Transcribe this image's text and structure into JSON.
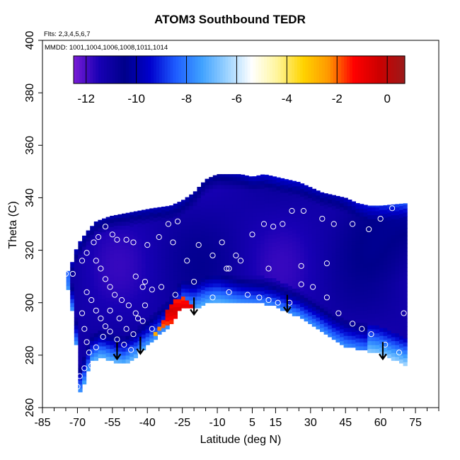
{
  "chart_data": {
    "type": "heatmap",
    "title": "ATOM3 Southbound TEDR",
    "note_flights": "Flts: 2,3,4,5,6,7",
    "note_dates": "MMDD: 1001,1004,1006,1008,1011,1014",
    "xlabel": "Latitude (deg N)",
    "ylabel": "Theta (C)",
    "xlim": [
      -85,
      85
    ],
    "ylim": [
      260,
      400
    ],
    "xticks": [
      "-85",
      "-70",
      "-55",
      "-40",
      "-25",
      "-10",
      "5",
      "15",
      "30",
      "45",
      "60",
      "75"
    ],
    "yticks": [
      "260",
      "280",
      "300",
      "320",
      "340",
      "360",
      "380",
      "400"
    ],
    "colorbar": {
      "ticks": [
        "-12",
        "-10",
        "-8",
        "-6",
        "-4",
        "-2",
        "0"
      ],
      "range": [
        -12.5,
        0.7
      ],
      "colors": [
        "#7a1bd6",
        "#1800b4",
        "#00008b",
        "#0000cd",
        "#1e5cff",
        "#3ea0ff",
        "#9ad2ff",
        "#ffffff",
        "#fff59a",
        "#ffd400",
        "#ff9800",
        "#ff0000",
        "#cc0000",
        "#9b1a1a"
      ]
    },
    "coverage_upper": [
      [
        -75,
        310
      ],
      [
        -72,
        316
      ],
      [
        -70,
        322
      ],
      [
        -66,
        327
      ],
      [
        -62,
        331
      ],
      [
        -56,
        333
      ],
      [
        -50,
        334
      ],
      [
        -44,
        335
      ],
      [
        -38,
        336
      ],
      [
        -30,
        337
      ],
      [
        -25,
        339
      ],
      [
        -20,
        342
      ],
      [
        -15,
        347
      ],
      [
        -10,
        349
      ],
      [
        -5,
        349
      ],
      [
        0,
        349
      ],
      [
        5,
        348
      ],
      [
        10,
        349
      ],
      [
        15,
        348
      ],
      [
        20,
        347
      ],
      [
        25,
        346
      ],
      [
        30,
        344
      ],
      [
        35,
        342
      ],
      [
        40,
        341
      ],
      [
        45,
        340
      ],
      [
        50,
        338
      ],
      [
        55,
        337
      ],
      [
        60,
        337
      ],
      [
        66,
        337.5
      ],
      [
        72,
        338
      ]
    ],
    "coverage_lower": [
      [
        -75,
        310
      ],
      [
        -72,
        296
      ],
      [
        -70,
        280
      ],
      [
        -69,
        266
      ],
      [
        -67,
        270
      ],
      [
        -64,
        278
      ],
      [
        -60,
        280
      ],
      [
        -55,
        278
      ],
      [
        -50,
        277
      ],
      [
        -45,
        280
      ],
      [
        -40,
        284
      ],
      [
        -35,
        288
      ],
      [
        -30,
        292
      ],
      [
        -25,
        299
      ],
      [
        -20,
        298
      ],
      [
        -15,
        300
      ],
      [
        -10,
        301
      ],
      [
        -5,
        300.5
      ],
      [
        0,
        300
      ],
      [
        5,
        300
      ],
      [
        10,
        300
      ],
      [
        15,
        299
      ],
      [
        20,
        297
      ],
      [
        25,
        295
      ],
      [
        30,
        292
      ],
      [
        35,
        289
      ],
      [
        40,
        286
      ],
      [
        45,
        284
      ],
      [
        50,
        283
      ],
      [
        55,
        282
      ],
      [
        60,
        281
      ],
      [
        65,
        279
      ],
      [
        72,
        276
      ]
    ],
    "high_region": [
      [
        -25,
        297
      ],
      [
        -22,
        296
      ],
      [
        -18,
        295
      ],
      [
        -22,
        300
      ],
      [
        -25,
        302
      ],
      [
        -30,
        300
      ],
      [
        -34,
        292
      ],
      [
        -37,
        288
      ],
      [
        -33,
        290
      ],
      [
        -28,
        294
      ]
    ],
    "obs_points": [
      [
        -75,
        311
      ],
      [
        -72,
        311
      ],
      [
        -68,
        316
      ],
      [
        -66,
        319
      ],
      [
        -63,
        323
      ],
      [
        -61,
        325
      ],
      [
        -58,
        329
      ],
      [
        -55,
        326
      ],
      [
        -53,
        324
      ],
      [
        -49,
        324
      ],
      [
        -46,
        323
      ],
      [
        -40,
        322
      ],
      [
        -35,
        325
      ],
      [
        -31,
        330
      ],
      [
        -27,
        331
      ],
      [
        -29,
        323
      ],
      [
        -23,
        316
      ],
      [
        -20,
        308
      ],
      [
        -18,
        322
      ],
      [
        -12,
        318
      ],
      [
        -8,
        323
      ],
      [
        -5,
        313
      ],
      [
        -2,
        318
      ],
      [
        0,
        316
      ],
      [
        5,
        326
      ],
      [
        10,
        330
      ],
      [
        14,
        329
      ],
      [
        18,
        330
      ],
      [
        22,
        335
      ],
      [
        27,
        335
      ],
      [
        35,
        332
      ],
      [
        40,
        330
      ],
      [
        48,
        330
      ],
      [
        55,
        328
      ],
      [
        60,
        332
      ],
      [
        65,
        336
      ],
      [
        -62,
        316
      ],
      [
        -60,
        313
      ],
      [
        -58,
        309
      ],
      [
        -56,
        306
      ],
      [
        -54,
        303
      ],
      [
        -51,
        301
      ],
      [
        -48,
        299
      ],
      [
        -45,
        296
      ],
      [
        -42,
        293
      ],
      [
        -38,
        290
      ],
      [
        -66,
        304
      ],
      [
        -64,
        301
      ],
      [
        -62,
        297
      ],
      [
        -60,
        294
      ],
      [
        -58,
        291
      ],
      [
        -56,
        289
      ],
      [
        -53,
        286
      ],
      [
        -50,
        284
      ],
      [
        -47,
        282
      ],
      [
        -43,
        281
      ],
      [
        -68,
        296
      ],
      [
        -67,
        290
      ],
      [
        -66,
        285
      ],
      [
        -65,
        281
      ],
      [
        -64,
        276
      ],
      [
        -62,
        283
      ],
      [
        -59,
        287
      ],
      [
        -56,
        297
      ],
      [
        -52,
        294
      ],
      [
        -49,
        290
      ],
      [
        -46,
        288
      ],
      [
        -44,
        294
      ],
      [
        -41,
        299
      ],
      [
        -38,
        305
      ],
      [
        -34,
        306
      ],
      [
        -28,
        303
      ],
      [
        -12,
        302
      ],
      [
        -5,
        304
      ],
      [
        3,
        303
      ],
      [
        8,
        302
      ],
      [
        12,
        301
      ],
      [
        16,
        300
      ],
      [
        21,
        300
      ],
      [
        26,
        307
      ],
      [
        31,
        306
      ],
      [
        37,
        302
      ],
      [
        42,
        296
      ],
      [
        48,
        292
      ],
      [
        52,
        290
      ],
      [
        56,
        288
      ],
      [
        62,
        284
      ],
      [
        68,
        281
      ],
      [
        70,
        296
      ],
      [
        -70,
        268
      ],
      [
        -69,
        272
      ],
      [
        -67,
        275
      ],
      [
        -6,
        313
      ],
      [
        12,
        313
      ],
      [
        26,
        314
      ],
      [
        37,
        315
      ],
      [
        -42,
        306
      ],
      [
        -45,
        310
      ],
      [
        -41,
        308
      ]
    ],
    "arrows": [
      [
        -53,
        285
      ],
      [
        -43,
        287
      ],
      [
        -20,
        302
      ],
      [
        20,
        303
      ],
      [
        61,
        285
      ]
    ]
  }
}
